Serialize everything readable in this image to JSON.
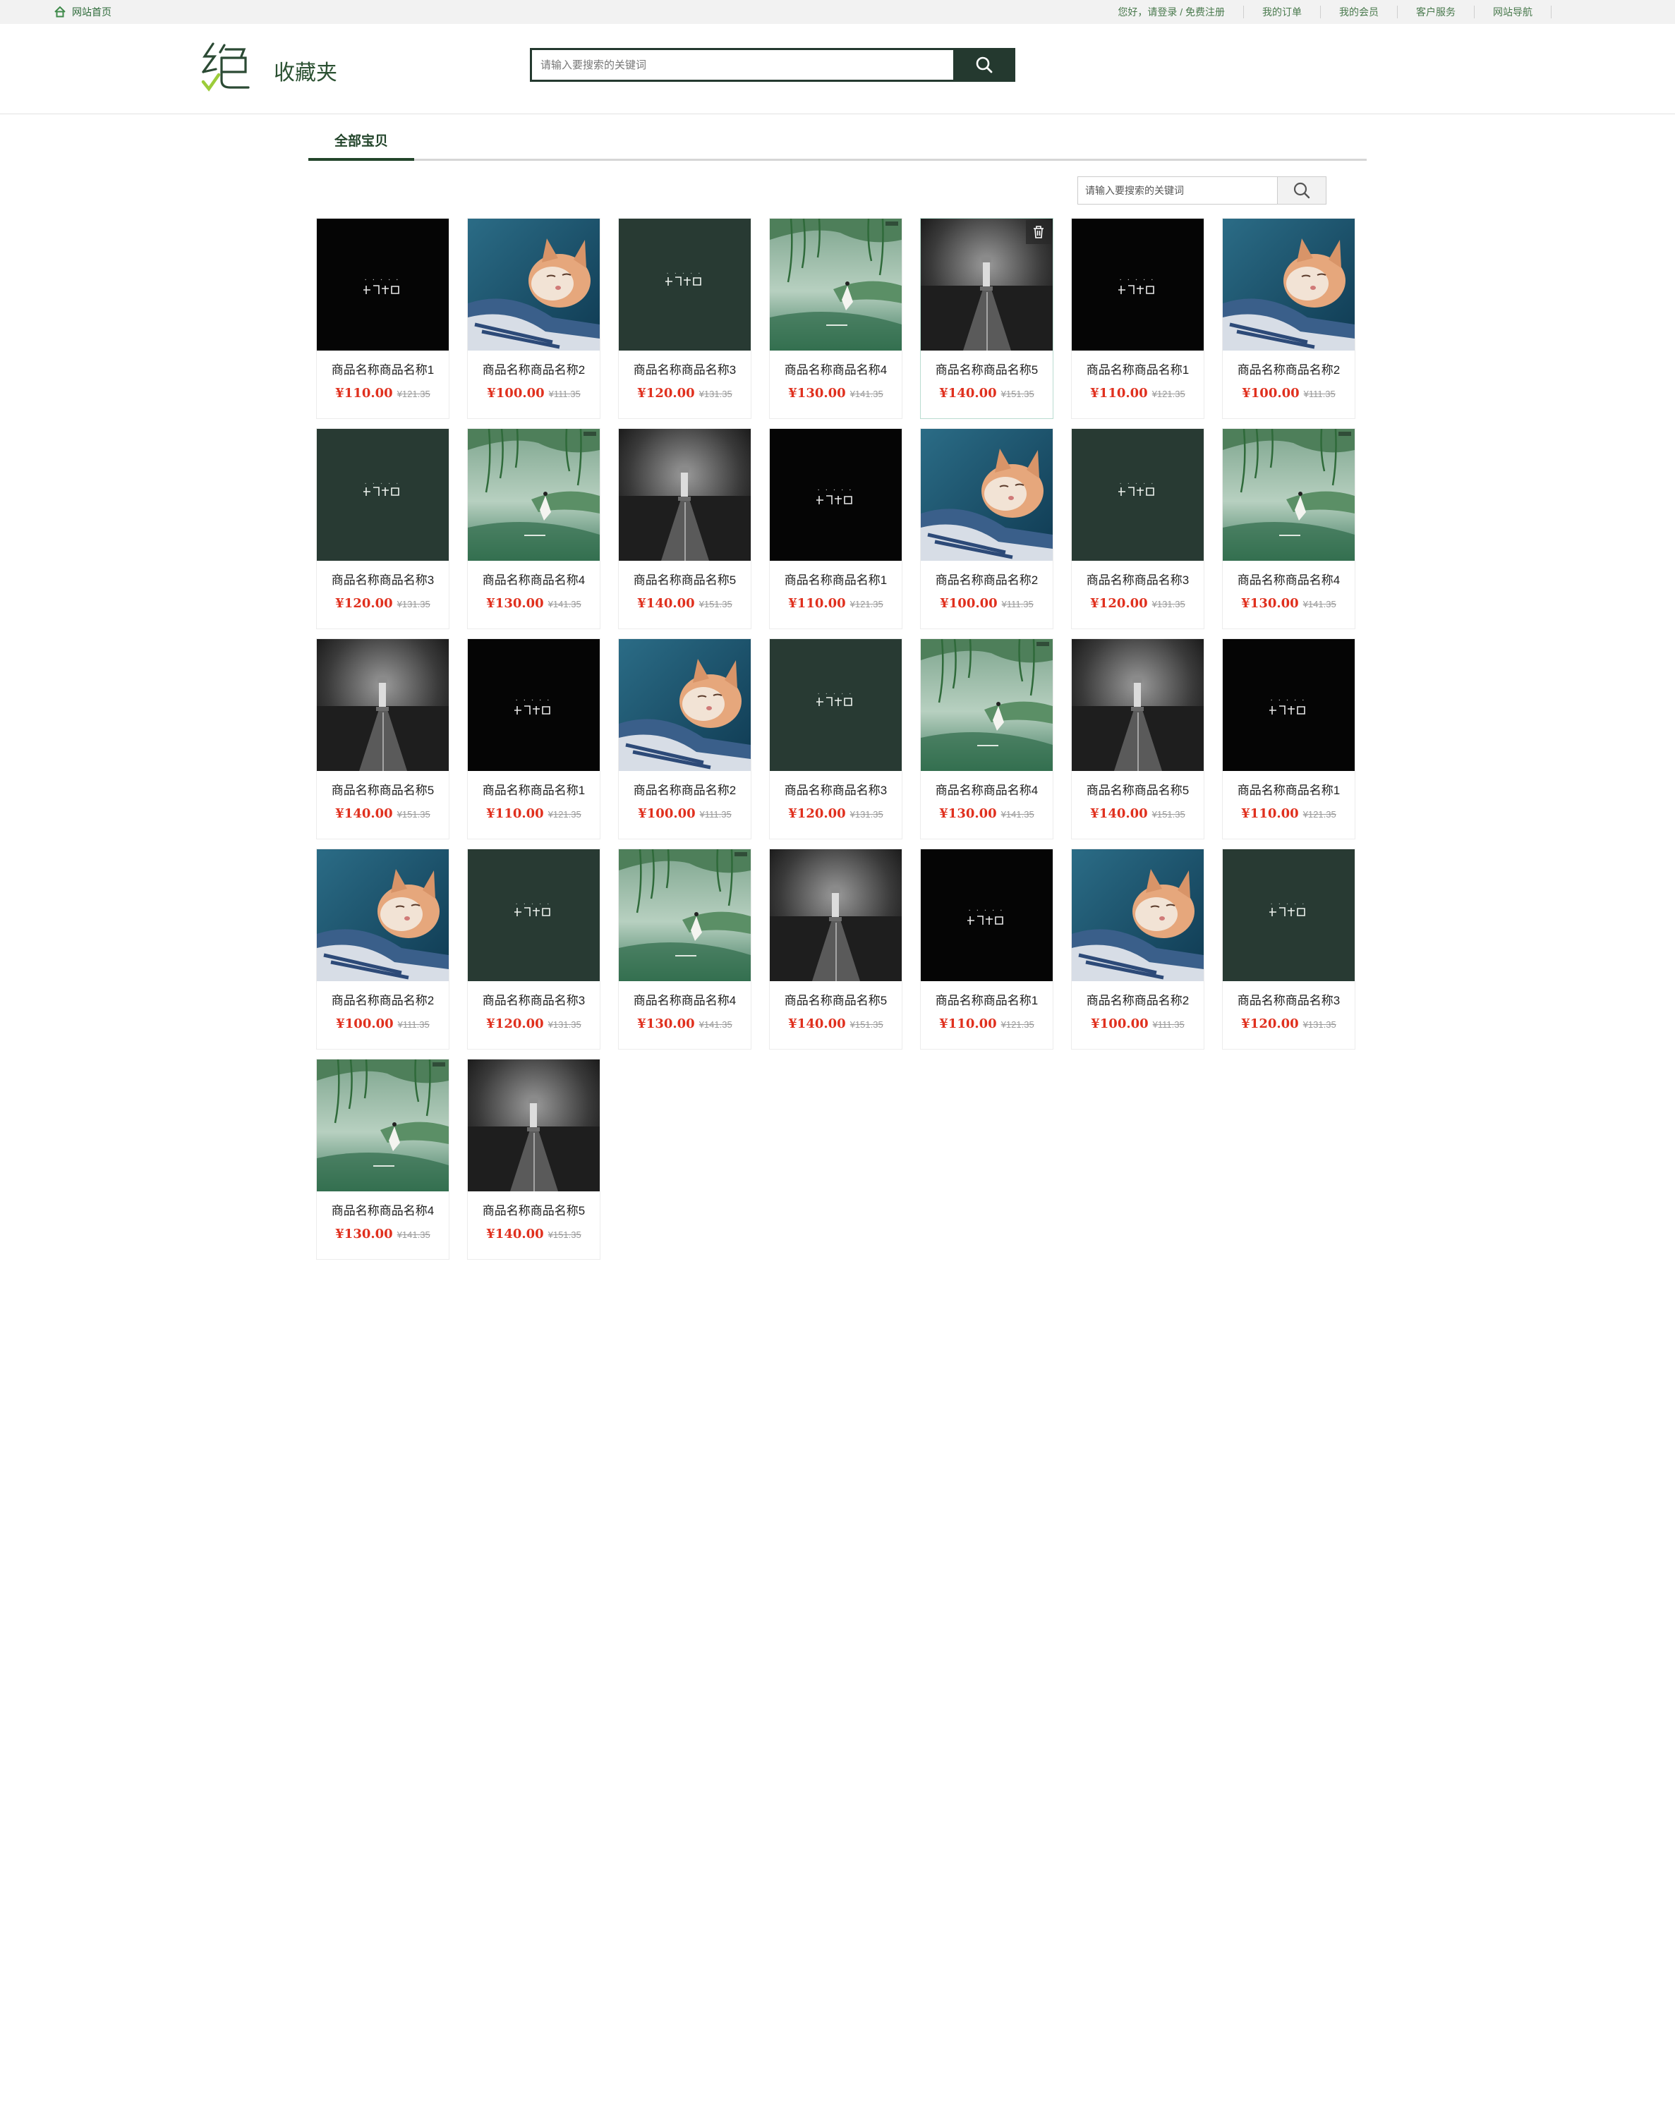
{
  "topbar": {
    "home_label": "网站首页",
    "links": [
      "您好，请登录 / 免费注册",
      "我的订单",
      "我的会员",
      "客户服务",
      "网站导航"
    ]
  },
  "header": {
    "title": "收藏夹",
    "search_placeholder": "请输入要搜索的关键词"
  },
  "tabs": {
    "active": "全部宝贝"
  },
  "inner_search": {
    "placeholder": "请输入要搜索的关键词"
  },
  "colors": {
    "brand": "#24392f",
    "price": "#e0301e",
    "accent": "#2e6b3a"
  },
  "items": [
    {
      "name": "商品名称商品名称1",
      "price": "¥110.00",
      "old_price": "¥121.35",
      "image": "black-poster"
    },
    {
      "name": "商品名称商品名称2",
      "price": "¥100.00",
      "old_price": "¥111.35",
      "image": "cat"
    },
    {
      "name": "商品名称商品名称3",
      "price": "¥120.00",
      "old_price": "¥131.35",
      "image": "green-poster"
    },
    {
      "name": "商品名称商品名称4",
      "price": "¥130.00",
      "old_price": "¥141.35",
      "image": "lake-girl"
    },
    {
      "name": "商品名称商品名称5",
      "price": "¥140.00",
      "old_price": "¥151.35",
      "image": "lighthouse",
      "show_delete": true
    },
    {
      "name": "商品名称商品名称1",
      "price": "¥110.00",
      "old_price": "¥121.35",
      "image": "black-poster"
    },
    {
      "name": "商品名称商品名称2",
      "price": "¥100.00",
      "old_price": "¥111.35",
      "image": "cat"
    },
    {
      "name": "商品名称商品名称3",
      "price": "¥120.00",
      "old_price": "¥131.35",
      "image": "green-poster"
    },
    {
      "name": "商品名称商品名称4",
      "price": "¥130.00",
      "old_price": "¥141.35",
      "image": "lake-girl"
    },
    {
      "name": "商品名称商品名称5",
      "price": "¥140.00",
      "old_price": "¥151.35",
      "image": "lighthouse"
    },
    {
      "name": "商品名称商品名称1",
      "price": "¥110.00",
      "old_price": "¥121.35",
      "image": "black-poster"
    },
    {
      "name": "商品名称商品名称2",
      "price": "¥100.00",
      "old_price": "¥111.35",
      "image": "cat"
    },
    {
      "name": "商品名称商品名称3",
      "price": "¥120.00",
      "old_price": "¥131.35",
      "image": "green-poster"
    },
    {
      "name": "商品名称商品名称4",
      "price": "¥130.00",
      "old_price": "¥141.35",
      "image": "lake-girl"
    },
    {
      "name": "商品名称商品名称5",
      "price": "¥140.00",
      "old_price": "¥151.35",
      "image": "lighthouse"
    },
    {
      "name": "商品名称商品名称1",
      "price": "¥110.00",
      "old_price": "¥121.35",
      "image": "black-poster"
    },
    {
      "name": "商品名称商品名称2",
      "price": "¥100.00",
      "old_price": "¥111.35",
      "image": "cat"
    },
    {
      "name": "商品名称商品名称3",
      "price": "¥120.00",
      "old_price": "¥131.35",
      "image": "green-poster"
    },
    {
      "name": "商品名称商品名称4",
      "price": "¥130.00",
      "old_price": "¥141.35",
      "image": "lake-girl"
    },
    {
      "name": "商品名称商品名称5",
      "price": "¥140.00",
      "old_price": "¥151.35",
      "image": "lighthouse"
    },
    {
      "name": "商品名称商品名称1",
      "price": "¥110.00",
      "old_price": "¥121.35",
      "image": "black-poster"
    },
    {
      "name": "商品名称商品名称2",
      "price": "¥100.00",
      "old_price": "¥111.35",
      "image": "cat"
    },
    {
      "name": "商品名称商品名称3",
      "price": "¥120.00",
      "old_price": "¥131.35",
      "image": "green-poster"
    },
    {
      "name": "商品名称商品名称4",
      "price": "¥130.00",
      "old_price": "¥141.35",
      "image": "lake-girl"
    },
    {
      "name": "商品名称商品名称5",
      "price": "¥140.00",
      "old_price": "¥151.35",
      "image": "lighthouse"
    },
    {
      "name": "商品名称商品名称1",
      "price": "¥110.00",
      "old_price": "¥121.35",
      "image": "black-poster"
    },
    {
      "name": "商品名称商品名称2",
      "price": "¥100.00",
      "old_price": "¥111.35",
      "image": "cat"
    },
    {
      "name": "商品名称商品名称3",
      "price": "¥120.00",
      "old_price": "¥131.35",
      "image": "green-poster"
    },
    {
      "name": "商品名称商品名称4",
      "price": "¥130.00",
      "old_price": "¥141.35",
      "image": "lake-girl"
    },
    {
      "name": "商品名称商品名称5",
      "price": "¥140.00",
      "old_price": "¥151.35",
      "image": "lighthouse"
    }
  ]
}
